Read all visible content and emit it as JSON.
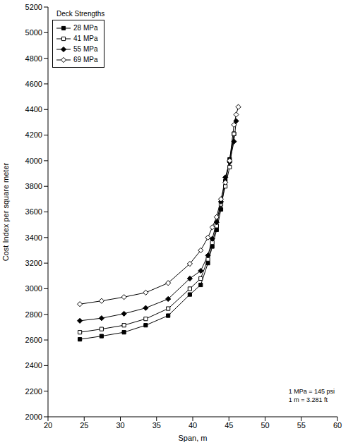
{
  "chart_data": {
    "type": "line",
    "x_label": "Span, m",
    "y_label": "Cost Index per square meter",
    "legend_title": "Deck Strengths",
    "legend": "upper left",
    "grid": false,
    "annotations": [
      "1 MPa = 145 psi",
      "1 m = 3.281 ft"
    ],
    "x": [
      24.4,
      27.4,
      30.5,
      33.5,
      36.6,
      39.6,
      41.1,
      42.1,
      42.7,
      43.3,
      43.9,
      44.5,
      45.1,
      45.7,
      46.0,
      46.3
    ],
    "series": [
      {
        "name": "28 MPa",
        "color": "#000000",
        "marker": "square",
        "values": [
          2605,
          2630,
          2660,
          2715,
          2790,
          2955,
          3030,
          3200,
          3330,
          3460,
          3620,
          3840,
          4010,
          4210,
          null,
          null
        ]
      },
      {
        "name": "41 MPa",
        "color": "#000000",
        "marker": "open_square",
        "values": [
          2660,
          2685,
          2715,
          2765,
          2845,
          3000,
          3080,
          3230,
          3360,
          3490,
          3660,
          3800,
          3950,
          4210,
          null,
          null
        ]
      },
      {
        "name": "55 MPa",
        "color": "#000000",
        "marker": "diamond",
        "values": [
          2750,
          2770,
          2805,
          2850,
          2920,
          3080,
          3140,
          3260,
          3390,
          3520,
          3680,
          3870,
          3990,
          4150,
          4310,
          null
        ]
      },
      {
        "name": "69 MPa",
        "color": "#000000",
        "marker": "open_diamond",
        "values": [
          2880,
          2905,
          2935,
          2970,
          3045,
          3195,
          3300,
          3400,
          3480,
          3560,
          3700,
          3830,
          4000,
          4280,
          4360,
          4420
        ]
      }
    ],
    "xlim": [
      20,
      60
    ],
    "ylim": [
      2000,
      5200
    ],
    "xticks": [
      20,
      25,
      30,
      35,
      40,
      45,
      50,
      55,
      60
    ],
    "yticks": [
      2000,
      2200,
      2400,
      2600,
      2800,
      3000,
      3200,
      3400,
      3600,
      3800,
      4000,
      4200,
      4400,
      4600,
      4800,
      5000,
      5200
    ]
  }
}
